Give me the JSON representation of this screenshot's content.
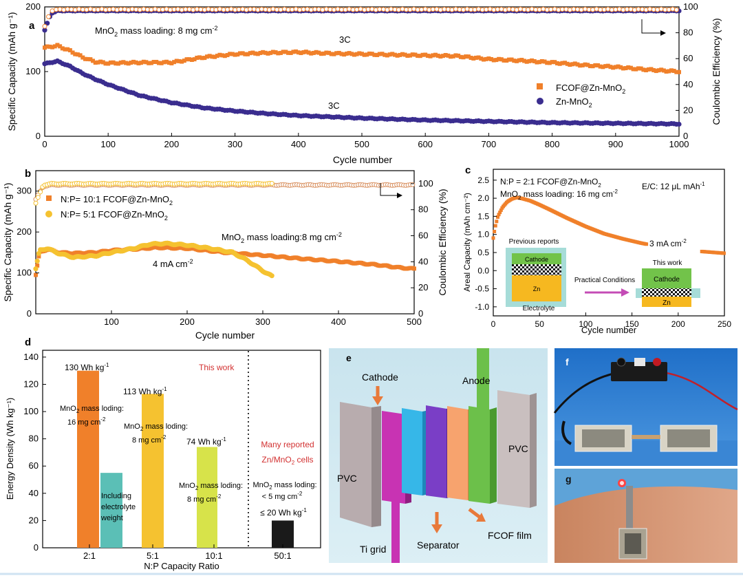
{
  "panel_a": {
    "letter": "a",
    "annotation_loading": "MnO",
    "annotation_loading_rest": " mass loading: 8 mg cm",
    "rate_label_top": "3C",
    "rate_label_bottom": "3C",
    "legend": [
      "FCOF@Zn-MnO",
      "Zn-MnO"
    ],
    "sub2": "2",
    "supm2": "-2"
  },
  "panel_b": {
    "letter": "b",
    "legend": [
      "N:P= 10:1   FCOF@Zn-MnO",
      "N:P= 5:1     FCOF@Zn-MnO"
    ],
    "annotation_loading": "MnO",
    "annotation_loading_rest": " mass loading:8 mg cm",
    "current_label": "4 mA cm",
    "sub2": "2",
    "supm2": "-2"
  },
  "panel_c": {
    "letter": "c",
    "np_label": "N:P = 2:1   FCOF@Zn-MnO",
    "loading_label": "MnO",
    "loading_label_rest": " mass loading: 16 mg cm",
    "ec_label": "E/C: 12 μL mAh",
    "sup_m1": "-1",
    "current_label": "3 mA cm",
    "sub2": "2",
    "supm2": "-2",
    "inset": {
      "prev_title": "Previous reports",
      "cathode": "Cathode",
      "zn": "Zn",
      "electrolyte": "Electrolyte",
      "arrow_label": "Practical Conditions",
      "this_work": "This work"
    }
  },
  "panel_d": {
    "letter": "d",
    "this_work": "This work",
    "many_reported": "Many reported",
    "many_reported_2": "Zn/MnO",
    "many_reported_2b": " cells",
    "right_loading": "MnO",
    "right_loading_rest": " mass loding:",
    "right_loading_2": "< 5 mg cm",
    "right_energy": "≤ 20 Wh kg",
    "mass_loding": " mass loding:",
    "l16": "16 mg cm",
    "l8": "8 mg cm",
    "including": [
      "Including",
      "electrolyte",
      "weight"
    ],
    "wh": "Wh kg",
    "sup_m1": "-1",
    "sup_m2": "-2",
    "sub2": "2"
  },
  "panel_e": {
    "letter": "e",
    "cathode": "Cathode",
    "anode": "Anode",
    "pvc_left": "PVC",
    "pvc_right": "PVC",
    "ti_grid": "Ti grid",
    "separator": "Separator",
    "fcof_film": "FCOF film"
  },
  "panel_f": {
    "letter": "f"
  },
  "panel_g": {
    "letter": "g"
  },
  "colors": {
    "orange": "#f0802a",
    "navy": "#3a2d8f",
    "yellow": "#f5c230",
    "teal": "#5bbfb6",
    "lime": "#d7e34a",
    "red_text": "#d23030",
    "green": "#6cc04a"
  },
  "chart_data": [
    {
      "id": "a",
      "type": "scatter",
      "xlabel": "Cycle number",
      "ylabel": "Specific Capacity (mAh g⁻¹)",
      "ylabel_right": "Coulombic Efficiency (%)",
      "xlim": [
        0,
        1000
      ],
      "ylim": [
        0,
        200
      ],
      "ylim_right": [
        0,
        100
      ],
      "xticks": [
        0,
        100,
        200,
        300,
        400,
        500,
        600,
        700,
        800,
        900,
        1000
      ],
      "yticks": [
        0,
        100,
        200
      ],
      "yticks_right": [
        0,
        20,
        40,
        60,
        80,
        100
      ],
      "series": [
        {
          "name": "FCOF@Zn-MnO2",
          "axis": "left",
          "x": [
            0,
            20,
            40,
            60,
            80,
            100,
            150,
            200,
            250,
            300,
            350,
            400,
            450,
            500,
            550,
            600,
            650,
            700,
            750,
            800,
            850,
            900,
            950,
            1000
          ],
          "values": [
            137,
            140,
            132,
            122,
            115,
            113,
            114,
            114,
            122,
            127,
            129,
            130,
            128,
            127,
            126,
            125,
            124,
            119,
            117,
            114,
            110,
            107,
            103,
            100
          ]
        },
        {
          "name": "Zn-MnO2",
          "axis": "left",
          "x": [
            0,
            20,
            40,
            60,
            80,
            100,
            150,
            200,
            250,
            300,
            350,
            400,
            450,
            500,
            600,
            700,
            800,
            900,
            1000
          ],
          "values": [
            112,
            116,
            108,
            97,
            88,
            80,
            63,
            52,
            44,
            39,
            35,
            32,
            30,
            28,
            25,
            23,
            21,
            20,
            19
          ]
        },
        {
          "name": "CE FCOF@Zn-MnO2",
          "axis": "right",
          "x": [
            0,
            10,
            20,
            100,
            300,
            500,
            700,
            900,
            1000
          ],
          "values": [
            85,
            97,
            98,
            98,
            98,
            98,
            98,
            98,
            98
          ]
        },
        {
          "name": "CE Zn-MnO2",
          "axis": "right",
          "x": [
            0,
            10,
            20,
            100,
            300,
            500,
            700,
            900,
            1000
          ],
          "values": [
            82,
            95,
            97,
            97,
            97,
            97,
            97,
            97,
            97
          ]
        }
      ]
    },
    {
      "id": "b",
      "type": "scatter",
      "xlabel": "Cycle number",
      "ylabel": "Specific Capacity (mAh g⁻¹)",
      "ylabel_right": "Coulombic Efficiency (%)",
      "xlim": [
        0,
        500
      ],
      "ylim": [
        0,
        350
      ],
      "ylim_right": [
        0,
        110
      ],
      "xticks": [
        100,
        200,
        300,
        400,
        500
      ],
      "yticks": [
        0,
        100,
        200,
        300
      ],
      "yticks_right": [
        0,
        20,
        40,
        60,
        80,
        100
      ],
      "series": [
        {
          "name": "N:P=10:1 FCOF@Zn-MnO2",
          "axis": "left",
          "x": [
            0,
            5,
            15,
            30,
            50,
            80,
            100,
            130,
            160,
            200,
            250,
            300,
            350,
            400,
            450,
            480,
            500
          ],
          "values": [
            95,
            150,
            158,
            150,
            148,
            150,
            155,
            158,
            162,
            160,
            150,
            143,
            135,
            128,
            120,
            113,
            110
          ]
        },
        {
          "name": "N:P=5:1 FCOF@Zn-MnO2",
          "axis": "left",
          "x": [
            0,
            5,
            15,
            30,
            50,
            80,
            100,
            130,
            150,
            170,
            200,
            230,
            260,
            280,
            300,
            312
          ],
          "values": [
            110,
            155,
            160,
            148,
            138,
            142,
            150,
            160,
            170,
            172,
            168,
            160,
            150,
            130,
            105,
            92
          ]
        },
        {
          "name": "CE N:P=10:1",
          "axis": "right",
          "x": [
            0,
            10,
            20,
            100,
            200,
            300,
            400,
            500
          ],
          "values": [
            88,
            98,
            99,
            99,
            99,
            99,
            99,
            99
          ]
        },
        {
          "name": "CE N:P=5:1",
          "axis": "right",
          "x": [
            0,
            10,
            20,
            100,
            200,
            300,
            312
          ],
          "values": [
            85,
            99,
            100,
            100,
            100,
            100,
            100
          ]
        }
      ]
    },
    {
      "id": "c",
      "type": "scatter",
      "xlabel": "Cycle number",
      "ylabel": "Areal Capacity (mAh cm⁻²)",
      "xlim": [
        0,
        250
      ],
      "ylim": [
        -1.25,
        2.8
      ],
      "xticks": [
        0,
        50,
        100,
        150,
        200,
        250
      ],
      "yticks": [
        -1.0,
        -0.5,
        0.0,
        0.5,
        1.0,
        1.5,
        2.0,
        2.5
      ],
      "series": [
        {
          "name": "FCOF@Zn-MnO2",
          "x": [
            0,
            2,
            5,
            10,
            15,
            20,
            25,
            30,
            40,
            50,
            60,
            80,
            100,
            120,
            140,
            160,
            180,
            200,
            220,
            240,
            250
          ],
          "values": [
            0.9,
            1.2,
            1.5,
            1.75,
            1.9,
            1.98,
            2.02,
            2.0,
            1.93,
            1.82,
            1.7,
            1.45,
            1.22,
            1.02,
            0.88,
            0.76,
            0.66,
            0.59,
            0.54,
            0.5,
            0.48
          ]
        }
      ]
    },
    {
      "id": "d",
      "type": "bar",
      "xlabel": "N:P Capacity Ratio",
      "ylabel": "Energy Density (Wh kg⁻¹)",
      "ylim": [
        0,
        145
      ],
      "yticks": [
        0,
        20,
        40,
        60,
        80,
        100,
        120,
        140
      ],
      "categories": [
        "2:1",
        "5:1",
        "10:1",
        "50:1"
      ],
      "series": [
        {
          "name": "This work",
          "values": [
            130,
            113,
            74,
            null
          ]
        },
        {
          "name": "Including electrolyte weight",
          "values": [
            55,
            null,
            null,
            null
          ]
        },
        {
          "name": "Many reported Zn/MnO2 cells",
          "values": [
            null,
            null,
            null,
            20
          ]
        }
      ],
      "data_labels": [
        "130 Wh kg⁻¹",
        "113 Wh kg⁻¹",
        "74 Wh kg⁻¹",
        "≤ 20 Wh kg⁻¹"
      ]
    }
  ]
}
